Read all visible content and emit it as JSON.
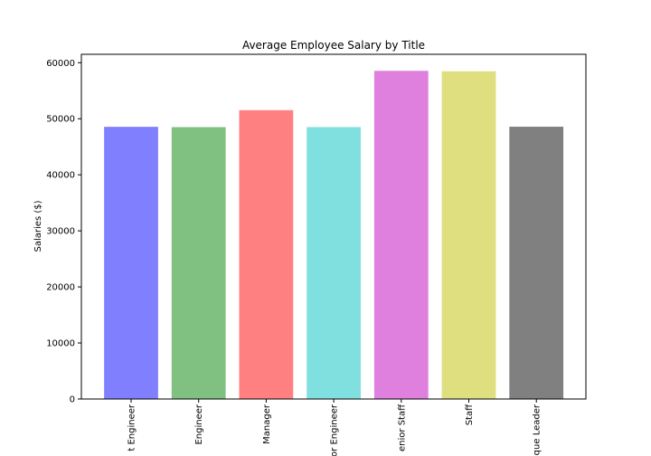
{
  "chart_data": {
    "type": "bar",
    "title": "Average Employee Salary by Title",
    "ylabel": "Salaries ($)",
    "categories": [
      "t Engineer",
      "Engineer",
      "Manager",
      "or Engineer",
      "enior Staff",
      "Staff",
      "que Leader"
    ],
    "values": [
      48560,
      48500,
      51530,
      48510,
      58550,
      58470,
      48580
    ],
    "colors": [
      "#8080ff",
      "#80c080",
      "#ff8080",
      "#80e0e0",
      "#df80df",
      "#dfdf80",
      "#808080"
    ],
    "ylim": [
      0,
      61500
    ],
    "yticks": [
      0,
      10000,
      20000,
      30000,
      40000,
      50000,
      60000
    ]
  }
}
